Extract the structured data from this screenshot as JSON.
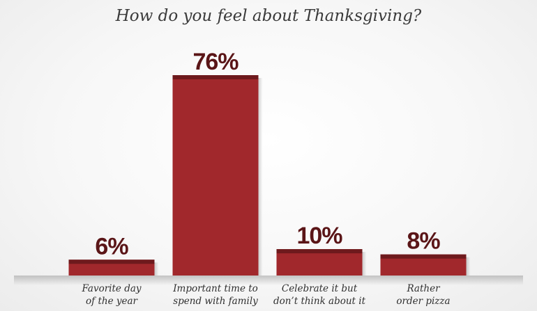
{
  "chart_data": {
    "type": "bar",
    "title": "How do you feel about Thanksgiving?",
    "categories": [
      [
        "Favorite day",
        "of the year"
      ],
      [
        "Important time to",
        "spend with family"
      ],
      [
        "Celebrate it but",
        "don’t think about it"
      ],
      [
        "Rather",
        "order pizza"
      ]
    ],
    "values": [
      6,
      76,
      10,
      8
    ],
    "value_labels": [
      "6%",
      "76%",
      "10%",
      "8%"
    ],
    "xlabel": "",
    "ylabel": "",
    "ylim": [
      0,
      76
    ],
    "grid": false,
    "legend": "none",
    "colors": {
      "bar": "#a1282c",
      "bar_top": "#6e1a1d",
      "value_label": "#5a1517",
      "baseline_shadow": "#b9b9b9"
    }
  }
}
